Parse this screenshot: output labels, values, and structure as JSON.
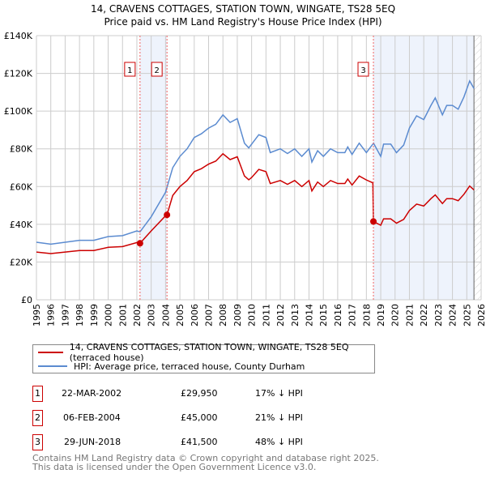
{
  "chart_data": {
    "type": "line",
    "title": "14, CRAVENS COTTAGES, STATION TOWN, WINGATE, TS28 5EQ",
    "subtitle": "Price paid vs. HM Land Registry's House Price Index (HPI)",
    "xlim": [
      1995,
      2026
    ],
    "ylim": [
      0,
      140000
    ],
    "x_ticks": [
      "1995",
      "1996",
      "1997",
      "1998",
      "1999",
      "2000",
      "2001",
      "2002",
      "2003",
      "2004",
      "2005",
      "2006",
      "2007",
      "2008",
      "2009",
      "2010",
      "2011",
      "2012",
      "2013",
      "2014",
      "2015",
      "2016",
      "2017",
      "2018",
      "2019",
      "2020",
      "2021",
      "2022",
      "2023",
      "2024",
      "2025",
      "2026"
    ],
    "y_ticks": [
      {
        "v": 0,
        "label": "£0"
      },
      {
        "v": 20000,
        "label": "£20K"
      },
      {
        "v": 40000,
        "label": "£40K"
      },
      {
        "v": 60000,
        "label": "£60K"
      },
      {
        "v": 80000,
        "label": "£80K"
      },
      {
        "v": 100000,
        "label": "£100K"
      },
      {
        "v": 120000,
        "label": "£120K"
      },
      {
        "v": 140000,
        "label": "£140K"
      }
    ],
    "grid": true,
    "series": [
      {
        "name": "14, CRAVENS COTTAGES, STATION TOWN, WINGATE, TS28 5EQ (terraced house)",
        "color": "#cc0000",
        "points": [
          [
            1995,
            25300
          ],
          [
            1996,
            24500
          ],
          [
            1997,
            25300
          ],
          [
            1998,
            26100
          ],
          [
            1999,
            26100
          ],
          [
            2000,
            27800
          ],
          [
            2001,
            28200
          ],
          [
            2002,
            30300
          ],
          [
            2002.22,
            29950
          ],
          [
            2003,
            36500
          ],
          [
            2004,
            44500
          ],
          [
            2004.1,
            45000
          ],
          [
            2004.5,
            55300
          ],
          [
            2005,
            60000
          ],
          [
            2005.5,
            63200
          ],
          [
            2006,
            67900
          ],
          [
            2006.5,
            69500
          ],
          [
            2007,
            71900
          ],
          [
            2007.5,
            73500
          ],
          [
            2008,
            77400
          ],
          [
            2008.5,
            74300
          ],
          [
            2009,
            75800
          ],
          [
            2009.5,
            65600
          ],
          [
            2009.8,
            63600
          ],
          [
            2010,
            64800
          ],
          [
            2010.5,
            69100
          ],
          [
            2011,
            67900
          ],
          [
            2011.3,
            61600
          ],
          [
            2012,
            63200
          ],
          [
            2012.5,
            61200
          ],
          [
            2013,
            63200
          ],
          [
            2013.5,
            60000
          ],
          [
            2014,
            63200
          ],
          [
            2014.2,
            57700
          ],
          [
            2014.6,
            62400
          ],
          [
            2015,
            60000
          ],
          [
            2015.5,
            63200
          ],
          [
            2016,
            61600
          ],
          [
            2016.5,
            61600
          ],
          [
            2016.7,
            64000
          ],
          [
            2017,
            60800
          ],
          [
            2017.5,
            65600
          ],
          [
            2018,
            63500
          ],
          [
            2018.45,
            62000
          ],
          [
            2018.49,
            41500
          ],
          [
            2019,
            39500
          ],
          [
            2019.2,
            42900
          ],
          [
            2019.7,
            42900
          ],
          [
            2020.1,
            40600
          ],
          [
            2020.6,
            42600
          ],
          [
            2021,
            47300
          ],
          [
            2021.5,
            50700
          ],
          [
            2022,
            49700
          ],
          [
            2022.5,
            53600
          ],
          [
            2022.8,
            55600
          ],
          [
            2023.3,
            51000
          ],
          [
            2023.6,
            53600
          ],
          [
            2024,
            53600
          ],
          [
            2024.4,
            52500
          ],
          [
            2024.8,
            55900
          ],
          [
            2025.2,
            60300
          ],
          [
            2025.5,
            58200
          ]
        ]
      },
      {
        "name": "HPI: Average price, terraced house, County Durham",
        "color": "#5b8bd0",
        "points": [
          [
            1995,
            30500
          ],
          [
            1996,
            29500
          ],
          [
            1997,
            30500
          ],
          [
            1998,
            31500
          ],
          [
            1999,
            31500
          ],
          [
            2000,
            33500
          ],
          [
            2001,
            34000
          ],
          [
            2002,
            36500
          ],
          [
            2002.22,
            36000
          ],
          [
            2003,
            44000
          ],
          [
            2004,
            57000
          ],
          [
            2004.5,
            70000
          ],
          [
            2005,
            76000
          ],
          [
            2005.5,
            80000
          ],
          [
            2006,
            86000
          ],
          [
            2006.5,
            88000
          ],
          [
            2007,
            91000
          ],
          [
            2007.5,
            93000
          ],
          [
            2008,
            98000
          ],
          [
            2008.5,
            94000
          ],
          [
            2009,
            96000
          ],
          [
            2009.5,
            83000
          ],
          [
            2009.8,
            80500
          ],
          [
            2010,
            82500
          ],
          [
            2010.5,
            87500
          ],
          [
            2011,
            86000
          ],
          [
            2011.3,
            78000
          ],
          [
            2012,
            80000
          ],
          [
            2012.5,
            77500
          ],
          [
            2013,
            80000
          ],
          [
            2013.5,
            76000
          ],
          [
            2014,
            80000
          ],
          [
            2014.2,
            73000
          ],
          [
            2014.6,
            79000
          ],
          [
            2015,
            76000
          ],
          [
            2015.5,
            80000
          ],
          [
            2016,
            78000
          ],
          [
            2016.5,
            78000
          ],
          [
            2016.7,
            81000
          ],
          [
            2017,
            77000
          ],
          [
            2017.5,
            83000
          ],
          [
            2018,
            78000
          ],
          [
            2018.5,
            83000
          ],
          [
            2019,
            76000
          ],
          [
            2019.2,
            82500
          ],
          [
            2019.7,
            82500
          ],
          [
            2020.1,
            78000
          ],
          [
            2020.6,
            82000
          ],
          [
            2021,
            91000
          ],
          [
            2021.5,
            97500
          ],
          [
            2022,
            95500
          ],
          [
            2022.5,
            103000
          ],
          [
            2022.8,
            107000
          ],
          [
            2023.3,
            98000
          ],
          [
            2023.6,
            103000
          ],
          [
            2024,
            103000
          ],
          [
            2024.4,
            101000
          ],
          [
            2024.8,
            107500
          ],
          [
            2025.2,
            116000
          ],
          [
            2025.5,
            112000
          ]
        ]
      }
    ],
    "sales": [
      {
        "id": "1",
        "x": 2002.22,
        "date": "22-MAR-2002",
        "price": "£29,950",
        "value": 29950,
        "hpi_diff": "17% ↓ HPI"
      },
      {
        "id": "2",
        "x": 2004.1,
        "date": "06-FEB-2004",
        "price": "£45,000",
        "value": 45000,
        "hpi_diff": "21% ↓ HPI"
      },
      {
        "id": "3",
        "x": 2018.49,
        "date": "29-JUN-2018",
        "price": "£41,500",
        "value": 41500,
        "hpi_diff": "48% ↓ HPI"
      }
    ],
    "shaded_ranges": [
      [
        2002.22,
        2004.1
      ],
      [
        2018.49,
        2025.5
      ]
    ],
    "projection_start": 2025.5,
    "legend_placement": "below"
  },
  "footer": {
    "line1": "Contains HM Land Registry data © Crown copyright and database right 2025.",
    "line2": "This data is licensed under the Open Government Licence v3.0."
  }
}
